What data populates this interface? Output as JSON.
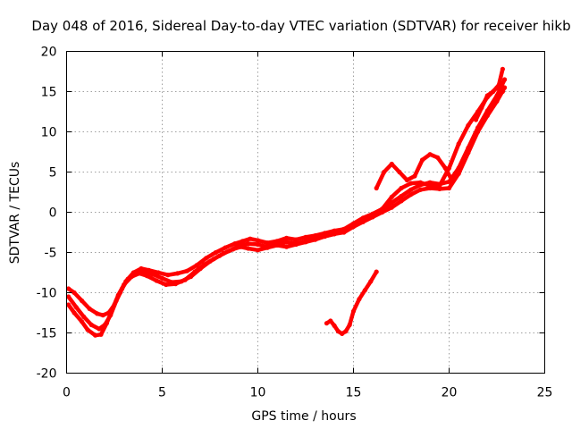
{
  "chart_data": {
    "type": "scatter",
    "title": "Day 048 of 2016, Sidereal Day-to-day VTEC variation (SDTVAR) for receiver hikb",
    "xlabel": "GPS time / hours",
    "ylabel": "SDTVAR / TECUs",
    "xlim": [
      0,
      25
    ],
    "ylim": [
      -20,
      20
    ],
    "xticks": [
      0,
      5,
      10,
      15,
      20,
      25
    ],
    "yticks": [
      -20,
      -15,
      -10,
      -5,
      0,
      5,
      10,
      15,
      20
    ],
    "xtick_labels": [
      "0",
      "5",
      "10",
      "15",
      "20",
      "25"
    ],
    "ytick_labels": [
      "-20",
      "-15",
      "-10",
      "-5",
      "0",
      "5",
      "10",
      "15",
      "20"
    ],
    "grid": true,
    "marker_color": "#ff0000",
    "series": [
      {
        "name": "trace-a",
        "x": [
          0.1,
          0.4,
          0.8,
          1.2,
          1.6,
          1.9,
          2.2,
          2.5,
          2.8,
          3.1,
          3.5,
          3.9,
          4.3,
          4.8,
          5.3,
          5.8,
          6.3,
          6.8,
          7.3,
          7.8,
          8.3,
          8.8,
          9.2,
          9.6,
          10.0,
          10.5,
          11.0,
          11.5,
          12.0,
          12.5,
          13.0,
          13.5,
          14.0,
          14.5,
          15.0,
          15.5,
          16.0,
          16.5,
          17.0,
          17.5,
          18.0,
          18.5,
          19.0,
          19.5,
          20.0,
          20.5,
          21.0,
          21.5,
          22.0,
          22.5,
          22.9
        ],
        "y": [
          -9.5,
          -10.0,
          -11.0,
          -12.0,
          -12.6,
          -12.8,
          -12.5,
          -11.5,
          -10.0,
          -8.6,
          -7.5,
          -7.0,
          -7.2,
          -7.5,
          -7.8,
          -7.6,
          -7.3,
          -6.6,
          -5.7,
          -5.0,
          -4.4,
          -3.9,
          -3.6,
          -3.3,
          -3.5,
          -3.8,
          -3.6,
          -3.2,
          -3.4,
          -3.1,
          -2.9,
          -2.6,
          -2.3,
          -2.1,
          -1.4,
          -0.7,
          -0.2,
          0.4,
          1.2,
          2.0,
          2.8,
          3.4,
          3.7,
          3.5,
          3.8,
          5.5,
          8.0,
          10.5,
          12.6,
          14.5,
          16.5
        ]
      },
      {
        "name": "trace-b",
        "x": [
          0.1,
          0.5,
          0.9,
          1.3,
          1.7,
          2.0,
          2.3,
          2.6,
          2.9,
          3.2,
          3.6,
          4.0,
          4.5,
          5.0,
          5.5,
          6.0,
          6.5,
          7.0,
          7.5,
          8.0,
          8.5,
          9.0,
          9.5,
          10.0,
          10.5,
          11.0,
          11.5,
          12.0,
          12.5,
          13.0,
          13.5,
          14.0,
          14.5,
          15.0,
          15.5,
          16.0,
          16.5,
          17.0,
          17.5,
          18.0,
          18.5,
          19.0,
          19.5,
          20.0,
          20.5,
          21.0,
          21.5,
          22.0,
          22.5,
          22.9
        ],
        "y": [
          -10.5,
          -11.8,
          -13.0,
          -14.0,
          -14.5,
          -14.0,
          -12.8,
          -11.0,
          -9.5,
          -8.3,
          -7.6,
          -7.3,
          -7.7,
          -8.2,
          -8.7,
          -8.6,
          -8.0,
          -7.0,
          -6.1,
          -5.4,
          -4.8,
          -4.2,
          -3.9,
          -4.0,
          -4.3,
          -4.0,
          -3.7,
          -3.9,
          -3.6,
          -3.3,
          -3.0,
          -2.7,
          -2.5,
          -1.8,
          -1.2,
          -0.6,
          0.0,
          0.6,
          1.4,
          2.2,
          2.8,
          3.0,
          2.9,
          3.0,
          4.8,
          7.4,
          10.0,
          12.0,
          13.8,
          15.5
        ]
      },
      {
        "name": "trace-c",
        "x": [
          0.1,
          0.4,
          0.8,
          1.1,
          1.5,
          1.8,
          2.1,
          2.4,
          2.7,
          3.0,
          3.4,
          3.8,
          4.2,
          4.7,
          5.2,
          5.7,
          6.2,
          6.7,
          7.2,
          7.7,
          8.2,
          8.7,
          9.1,
          9.5,
          10.0,
          10.5,
          11.0,
          11.5,
          12.0,
          12.5,
          13.0,
          13.5,
          14.0,
          14.5,
          15.0,
          15.5,
          16.0,
          16.5,
          17.0,
          17.5,
          18.0,
          18.5,
          19.0,
          19.5,
          20.0,
          20.5,
          21.0,
          21.5,
          22.0,
          22.5,
          22.8
        ],
        "y": [
          -11.5,
          -12.5,
          -13.6,
          -14.6,
          -15.3,
          -15.2,
          -13.8,
          -12.0,
          -10.3,
          -9.0,
          -8.0,
          -7.6,
          -7.9,
          -8.5,
          -9.0,
          -8.9,
          -8.4,
          -7.4,
          -6.5,
          -5.8,
          -5.1,
          -4.6,
          -4.3,
          -4.5,
          -4.7,
          -4.4,
          -4.1,
          -4.3,
          -4.0,
          -3.7,
          -3.4,
          -3.0,
          -2.7,
          -2.2,
          -1.6,
          -1.0,
          -0.3,
          0.4,
          1.9,
          3.0,
          3.6,
          3.7,
          3.3,
          3.3,
          5.5,
          8.5,
          10.8,
          12.5,
          14.3,
          15.5,
          15.0
        ]
      },
      {
        "name": "trace-d-upper-loop",
        "x": [
          16.2,
          16.6,
          17.0,
          17.4,
          17.8,
          18.2,
          18.6,
          19.0,
          19.4,
          19.8,
          20.1
        ],
        "y": [
          3.0,
          5.0,
          6.0,
          5.0,
          4.0,
          4.5,
          6.5,
          7.2,
          6.8,
          5.5,
          4.2
        ]
      },
      {
        "name": "trace-e-upper-spike",
        "x": [
          21.4,
          21.7,
          22.0,
          22.3,
          22.6,
          22.8
        ],
        "y": [
          11.5,
          13.0,
          14.5,
          15.0,
          15.8,
          17.8
        ]
      },
      {
        "name": "trace-f-isolated-arc",
        "x": [
          13.6,
          13.8,
          14.0,
          14.2,
          14.4,
          14.6,
          14.8,
          15.0,
          15.3,
          15.6,
          15.9,
          16.2
        ],
        "y": [
          -13.8,
          -13.5,
          -14.1,
          -14.8,
          -15.1,
          -14.8,
          -14.0,
          -12.3,
          -10.8,
          -9.7,
          -8.6,
          -7.4
        ]
      }
    ]
  }
}
